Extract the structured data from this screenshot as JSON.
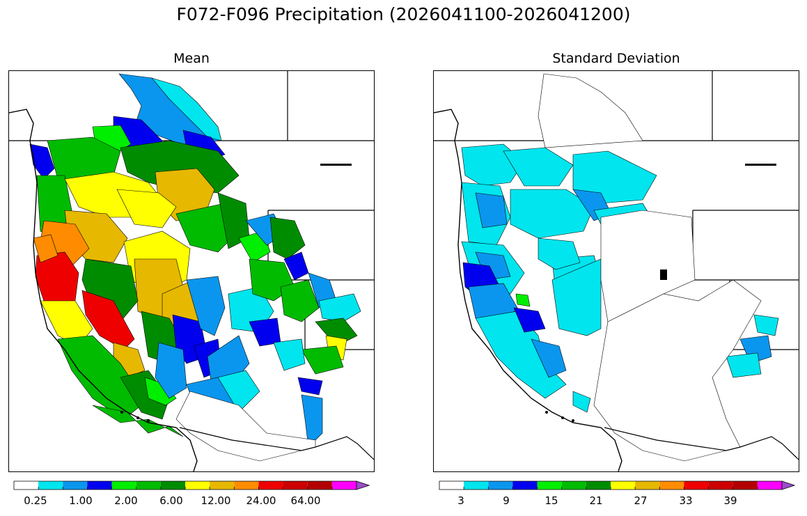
{
  "title": "F072-F096 Precipitation (2026041100-2026041200)",
  "panels": [
    {
      "title": "Mean",
      "colorbar": {
        "colors": [
          "#ffffff",
          "#00e5ee",
          "#0a96ee",
          "#0000ee",
          "#00ee00",
          "#00bb00",
          "#008c00",
          "#ffff00",
          "#e6b800",
          "#ff8c00",
          "#ee0000",
          "#cc0000",
          "#b30000",
          "#ff00ff",
          "#9c4dcc"
        ],
        "tick_labels": [
          "0.25",
          "1.00",
          "2.00",
          "6.00",
          "12.00",
          "24.00",
          "64.00"
        ],
        "extend": "max"
      }
    },
    {
      "title": "Standard Deviation",
      "colorbar": {
        "colors": [
          "#ffffff",
          "#00e5ee",
          "#0a96ee",
          "#0000ee",
          "#00ee00",
          "#00bb00",
          "#008c00",
          "#ffff00",
          "#e6b800",
          "#ff8c00",
          "#ee0000",
          "#cc0000",
          "#b30000",
          "#ff00ff",
          "#9c4dcc"
        ],
        "tick_labels": [
          "3",
          "9",
          "15",
          "21",
          "27",
          "33",
          "39"
        ],
        "extend": "max"
      }
    }
  ]
}
